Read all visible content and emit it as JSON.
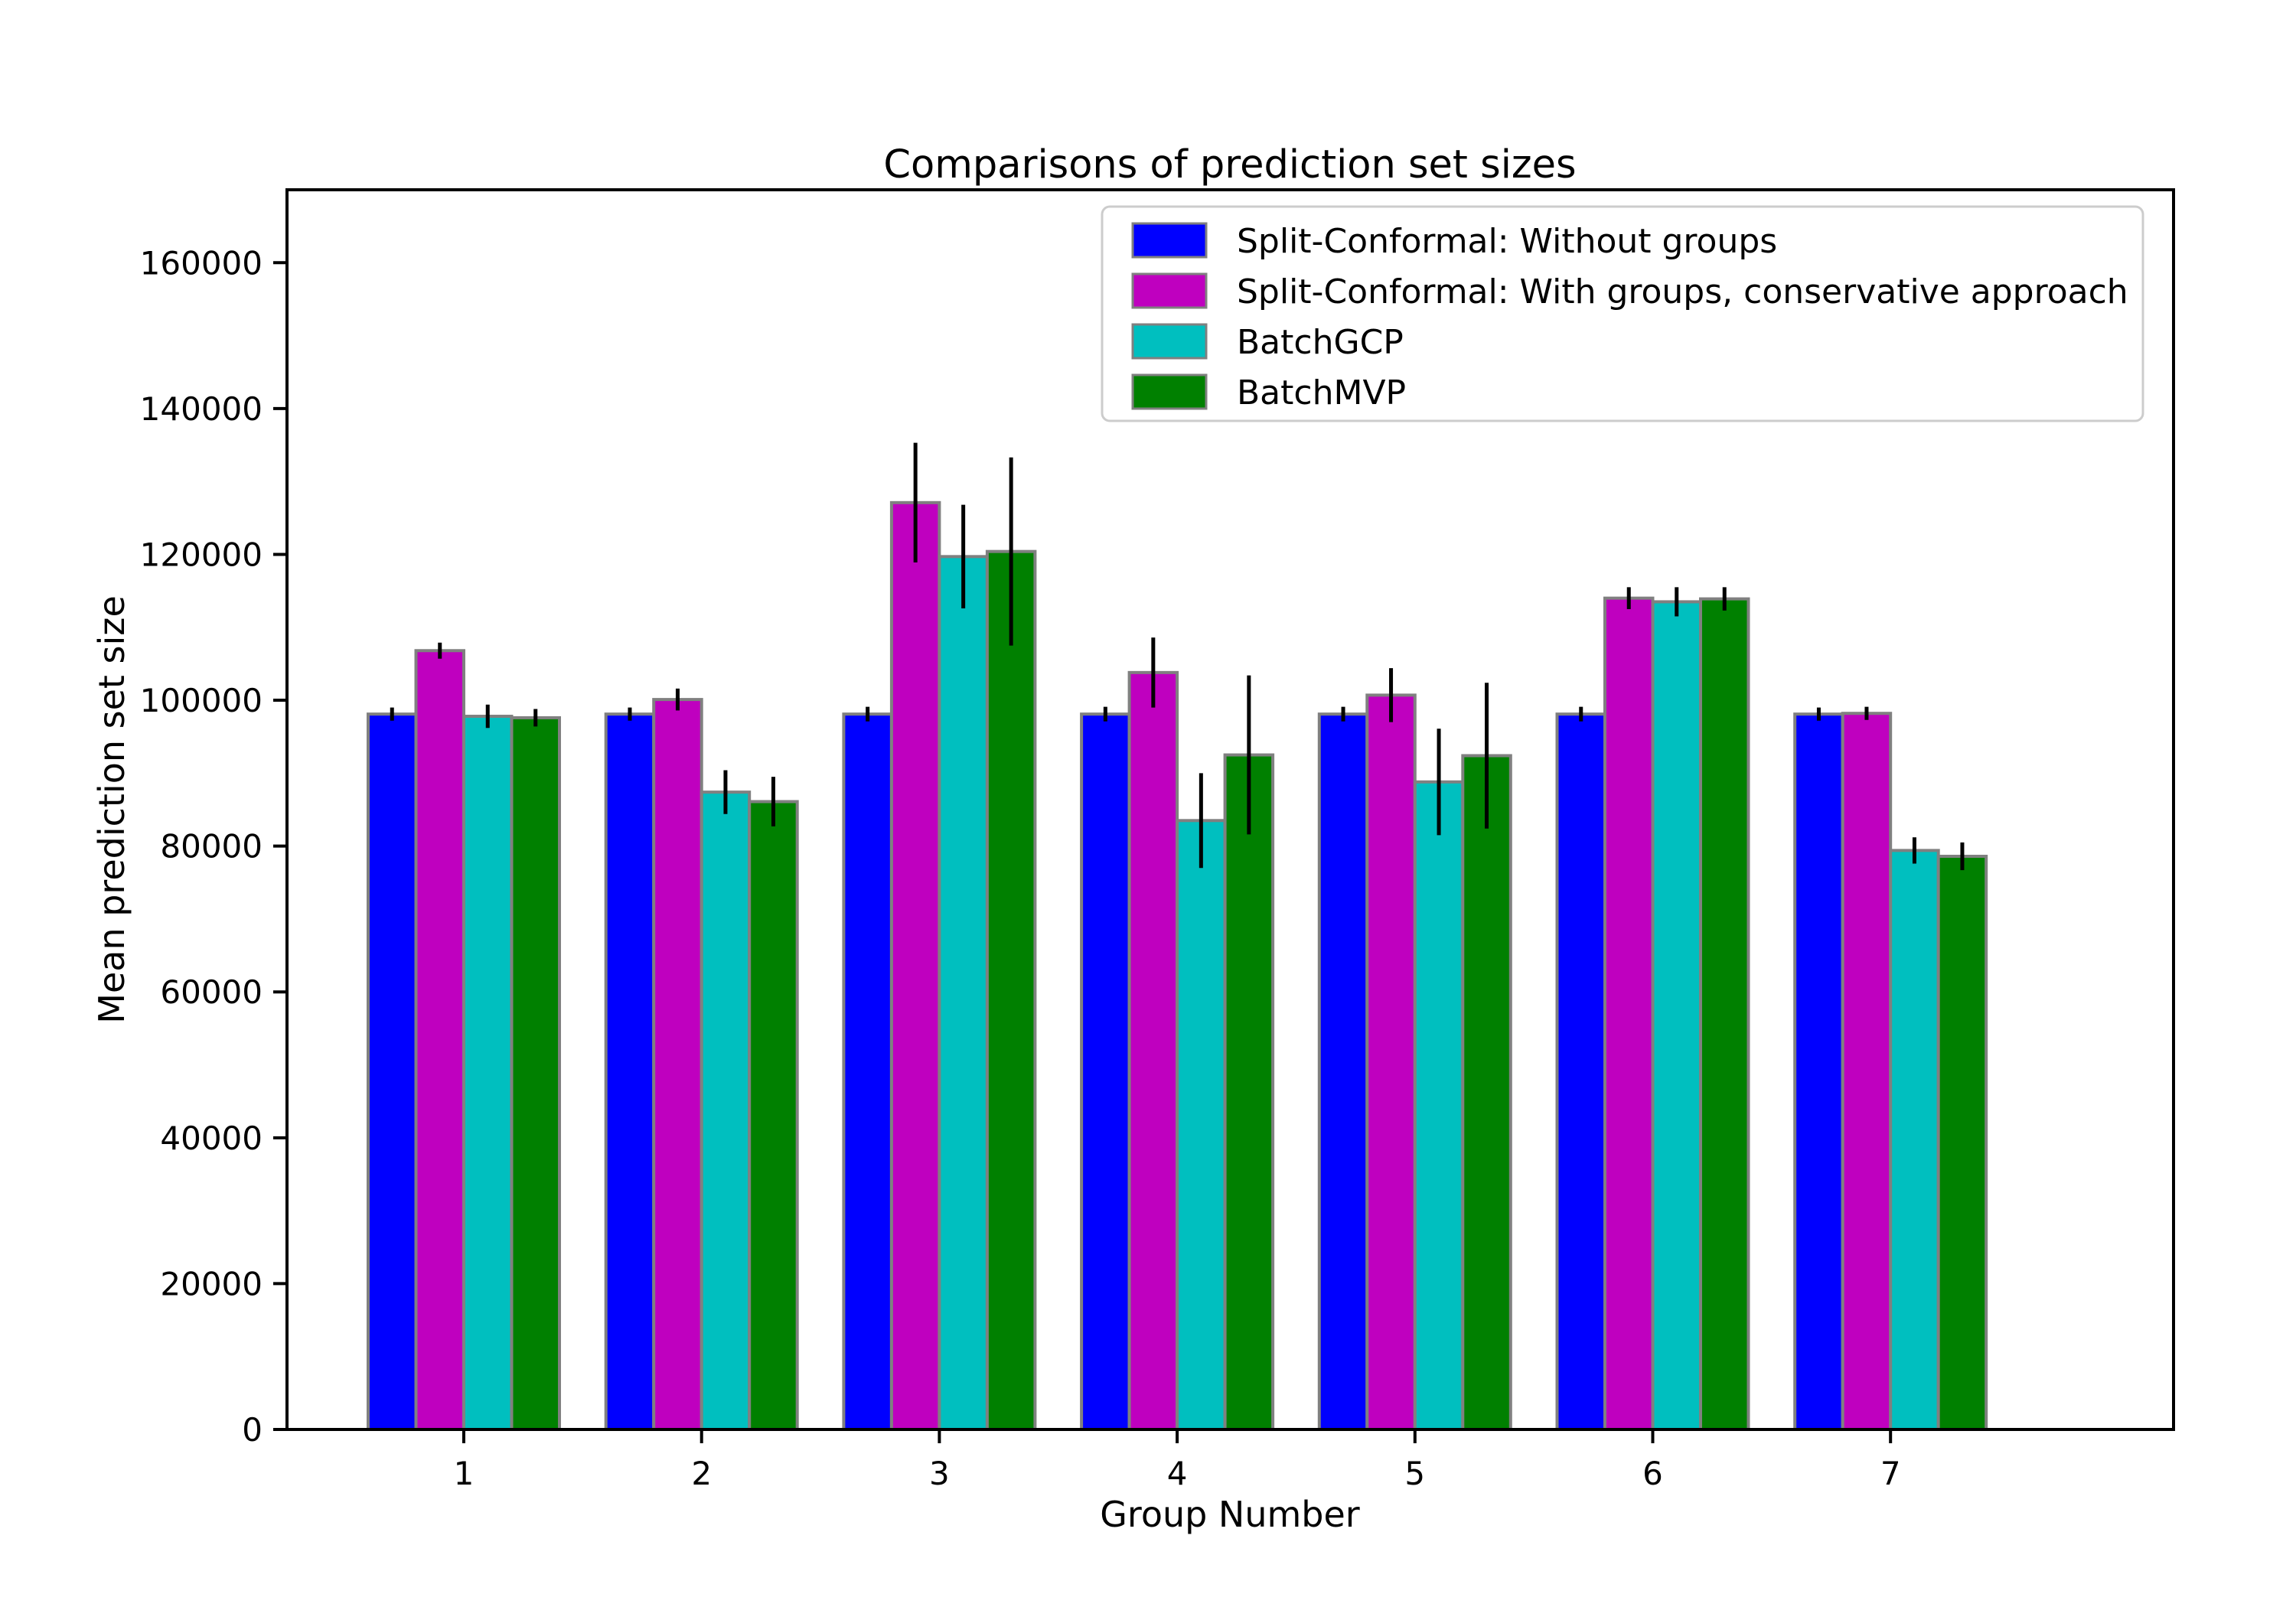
{
  "figure": {
    "background": "#ffffff"
  },
  "chart_data": {
    "type": "bar",
    "title": "Comparisons of prediction set sizes",
    "xlabel": "Group Number",
    "ylabel": "Mean prediction set size",
    "categories": [
      "1",
      "2",
      "3",
      "4",
      "5",
      "6",
      "7"
    ],
    "y_ticks": [
      0,
      20000,
      40000,
      60000,
      80000,
      100000,
      120000,
      140000,
      160000
    ],
    "ylim": [
      0,
      170000
    ],
    "grid": false,
    "legend_position": "upper right",
    "bar_edge_color": "#808080",
    "error_bar_color": "#000000",
    "series": [
      {
        "name": "Split-Conformal: Without groups",
        "color": "#0000ff",
        "values": [
          98100,
          98100,
          98100,
          98100,
          98100,
          98100,
          98100
        ],
        "errors": [
          900,
          900,
          1000,
          1000,
          1000,
          1000,
          900
        ]
      },
      {
        "name": "Split-Conformal: With groups, conservative approach",
        "color": "#bf00bf",
        "values": [
          106800,
          100100,
          127100,
          103800,
          100700,
          114000,
          98200
        ],
        "errors": [
          1100,
          1500,
          8200,
          4800,
          3700,
          1500,
          900
        ]
      },
      {
        "name": "BatchGCP",
        "color": "#00bfbf",
        "values": [
          97800,
          87400,
          119700,
          83500,
          88800,
          113500,
          79400
        ],
        "errors": [
          1600,
          3000,
          7100,
          6500,
          7300,
          2000,
          1800
        ]
      },
      {
        "name": "BatchMVP",
        "color": "#008000",
        "values": [
          97600,
          86100,
          120400,
          92500,
          92400,
          113900,
          78600
        ],
        "errors": [
          1200,
          3400,
          12900,
          10900,
          10000,
          1600,
          1900
        ]
      }
    ]
  }
}
